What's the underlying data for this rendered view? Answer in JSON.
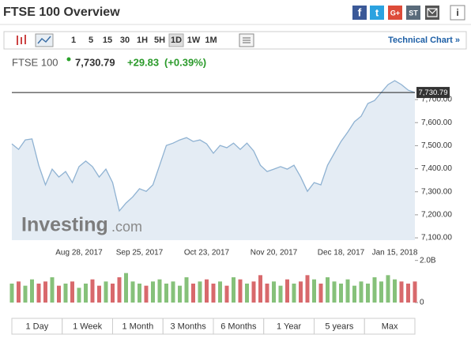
{
  "header": {
    "title": "FTSE 100 Overview",
    "share": [
      "G+",
      "ST"
    ]
  },
  "toolbar": {
    "intervals": [
      "1",
      "5",
      "15",
      "30",
      "1H",
      "5H",
      "1D",
      "1W",
      "1M"
    ],
    "selected_index": 6,
    "link": "Technical Chart »"
  },
  "quote": {
    "name": "FTSE 100",
    "price": "7,730.79",
    "change": "+29.83",
    "change_percent": "(+0.39%)"
  },
  "watermark": {
    "brand": "Investing",
    "suffix": ".com"
  },
  "chart_data": [
    {
      "type": "line",
      "categories": [
        null,
        null,
        null,
        null,
        null,
        null,
        null,
        null,
        null,
        null,
        "Aug 28, 2017",
        null,
        null,
        null,
        null,
        null,
        null,
        null,
        null,
        "Sep 25, 2017",
        null,
        null,
        null,
        null,
        null,
        null,
        null,
        null,
        null,
        "Oct 23, 2017",
        null,
        null,
        null,
        null,
        null,
        null,
        null,
        null,
        null,
        "Nov 20, 2017",
        null,
        null,
        null,
        null,
        null,
        null,
        null,
        null,
        null,
        "Dec 18, 2017",
        null,
        null,
        null,
        null,
        null,
        null,
        null,
        "Jan 15, 2018",
        null,
        null,
        null
      ],
      "values": [
        7508,
        7484,
        7525,
        7529,
        7415,
        7330,
        7398,
        7364,
        7388,
        7340,
        7409,
        7433,
        7409,
        7364,
        7398,
        7340,
        7217,
        7251,
        7278,
        7313,
        7302,
        7330,
        7415,
        7501,
        7511,
        7525,
        7535,
        7518,
        7525,
        7508,
        7467,
        7501,
        7491,
        7511,
        7484,
        7511,
        7477,
        7415,
        7388,
        7398,
        7409,
        7398,
        7415,
        7364,
        7302,
        7340,
        7330,
        7415,
        7467,
        7518,
        7559,
        7604,
        7628,
        7683,
        7696,
        7731,
        7765,
        7782,
        7765,
        7741,
        7730.79
      ],
      "color": "#8fb2d2",
      "fill": "#e4ecf4",
      "grid": false,
      "ylim": [
        7090,
        7803
      ],
      "yticks": [
        {
          "value": 7100,
          "label": "7,100.00"
        },
        {
          "value": 7200,
          "label": "7,200.00"
        },
        {
          "value": 7300,
          "label": "7,300.00"
        },
        {
          "value": 7400,
          "label": "7,400.00"
        },
        {
          "value": 7500,
          "label": "7,500.00"
        },
        {
          "value": 7600,
          "label": "7,600.00"
        },
        {
          "value": 7700,
          "label": "7,700.00"
        }
      ]
    },
    {
      "type": "bar",
      "values": [
        0.9,
        1.0,
        0.8,
        1.1,
        0.9,
        1.0,
        1.2,
        0.8,
        0.9,
        1.0,
        0.7,
        0.9,
        1.1,
        0.8,
        1.0,
        0.9,
        1.2,
        1.4,
        1.0,
        0.9,
        0.8,
        1.0,
        1.1,
        0.9,
        1.0,
        0.8,
        1.2,
        0.9,
        1.0,
        1.1,
        0.9,
        1.0,
        0.8,
        1.2,
        1.1,
        0.9,
        1.0,
        1.3,
        0.9,
        1.0,
        0.8,
        1.1,
        0.9,
        1.0,
        1.3,
        1.1,
        0.9,
        1.2,
        1.0,
        0.9,
        1.1,
        0.8,
        1.0,
        0.9,
        1.2,
        1.0,
        1.3,
        1.1,
        1.0,
        0.9,
        1.0
      ],
      "up_color": "#86c17a",
      "down_color": "#d8696c",
      "ylim": [
        0,
        2.1
      ],
      "yticks": [
        {
          "value": 2,
          "label": "2.0B"
        },
        0
      ]
    }
  ],
  "ranges": [
    "1 Day",
    "1 Week",
    "1 Month",
    "3 Months",
    "6 Months",
    "1 Year",
    "5 years",
    "Max"
  ]
}
